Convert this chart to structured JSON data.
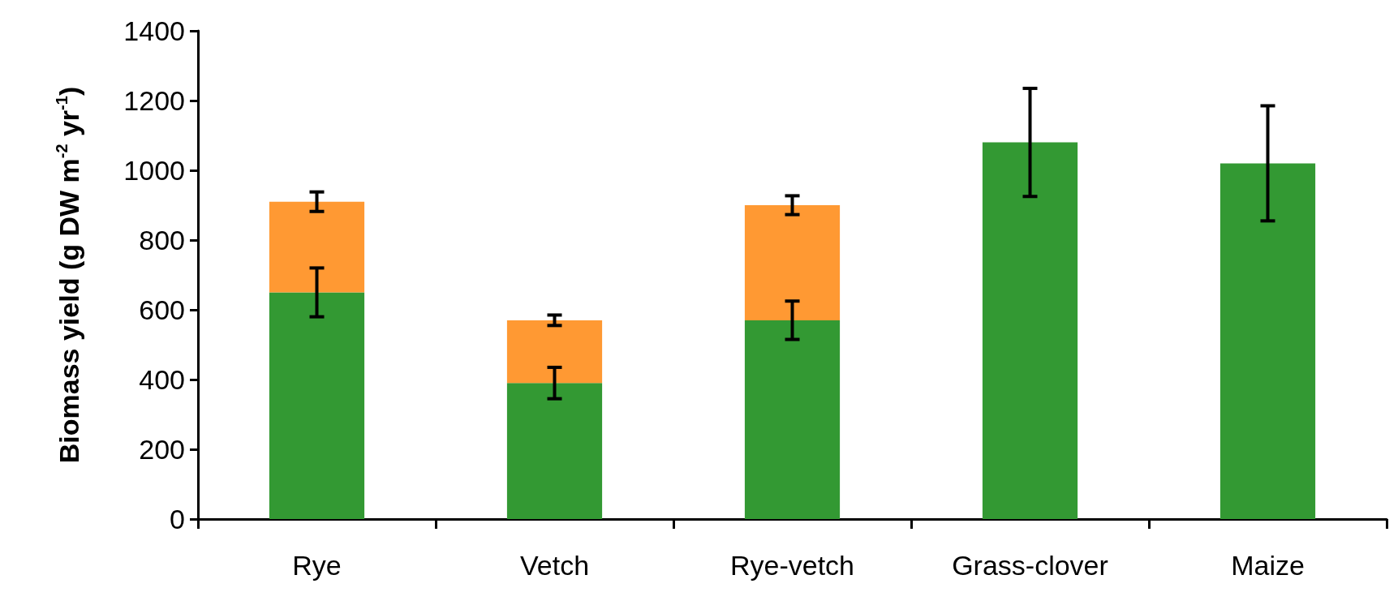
{
  "chart_data": {
    "type": "bar",
    "stacked": true,
    "ylabel": "Biomass yield (g DW m$^{-2}$ yr$^{-1}$)",
    "categories": [
      "Rye",
      "Vetch",
      "Rye-vetch",
      "Grass-clover",
      "Maize"
    ],
    "series": [
      {
        "color": "#339933",
        "values": [
          650,
          390,
          570,
          1080,
          1020
        ],
        "errors": [
          70,
          45,
          55,
          155,
          165
        ]
      },
      {
        "color": "#ff9933",
        "values": [
          260,
          180,
          330,
          null,
          null
        ],
        "errors": [
          28,
          15,
          27,
          null,
          null
        ]
      }
    ],
    "ylim": [
      0,
      1400
    ],
    "yticks": [
      0,
      200,
      400,
      600,
      800,
      1000,
      1200,
      1400
    ],
    "grid": false
  }
}
